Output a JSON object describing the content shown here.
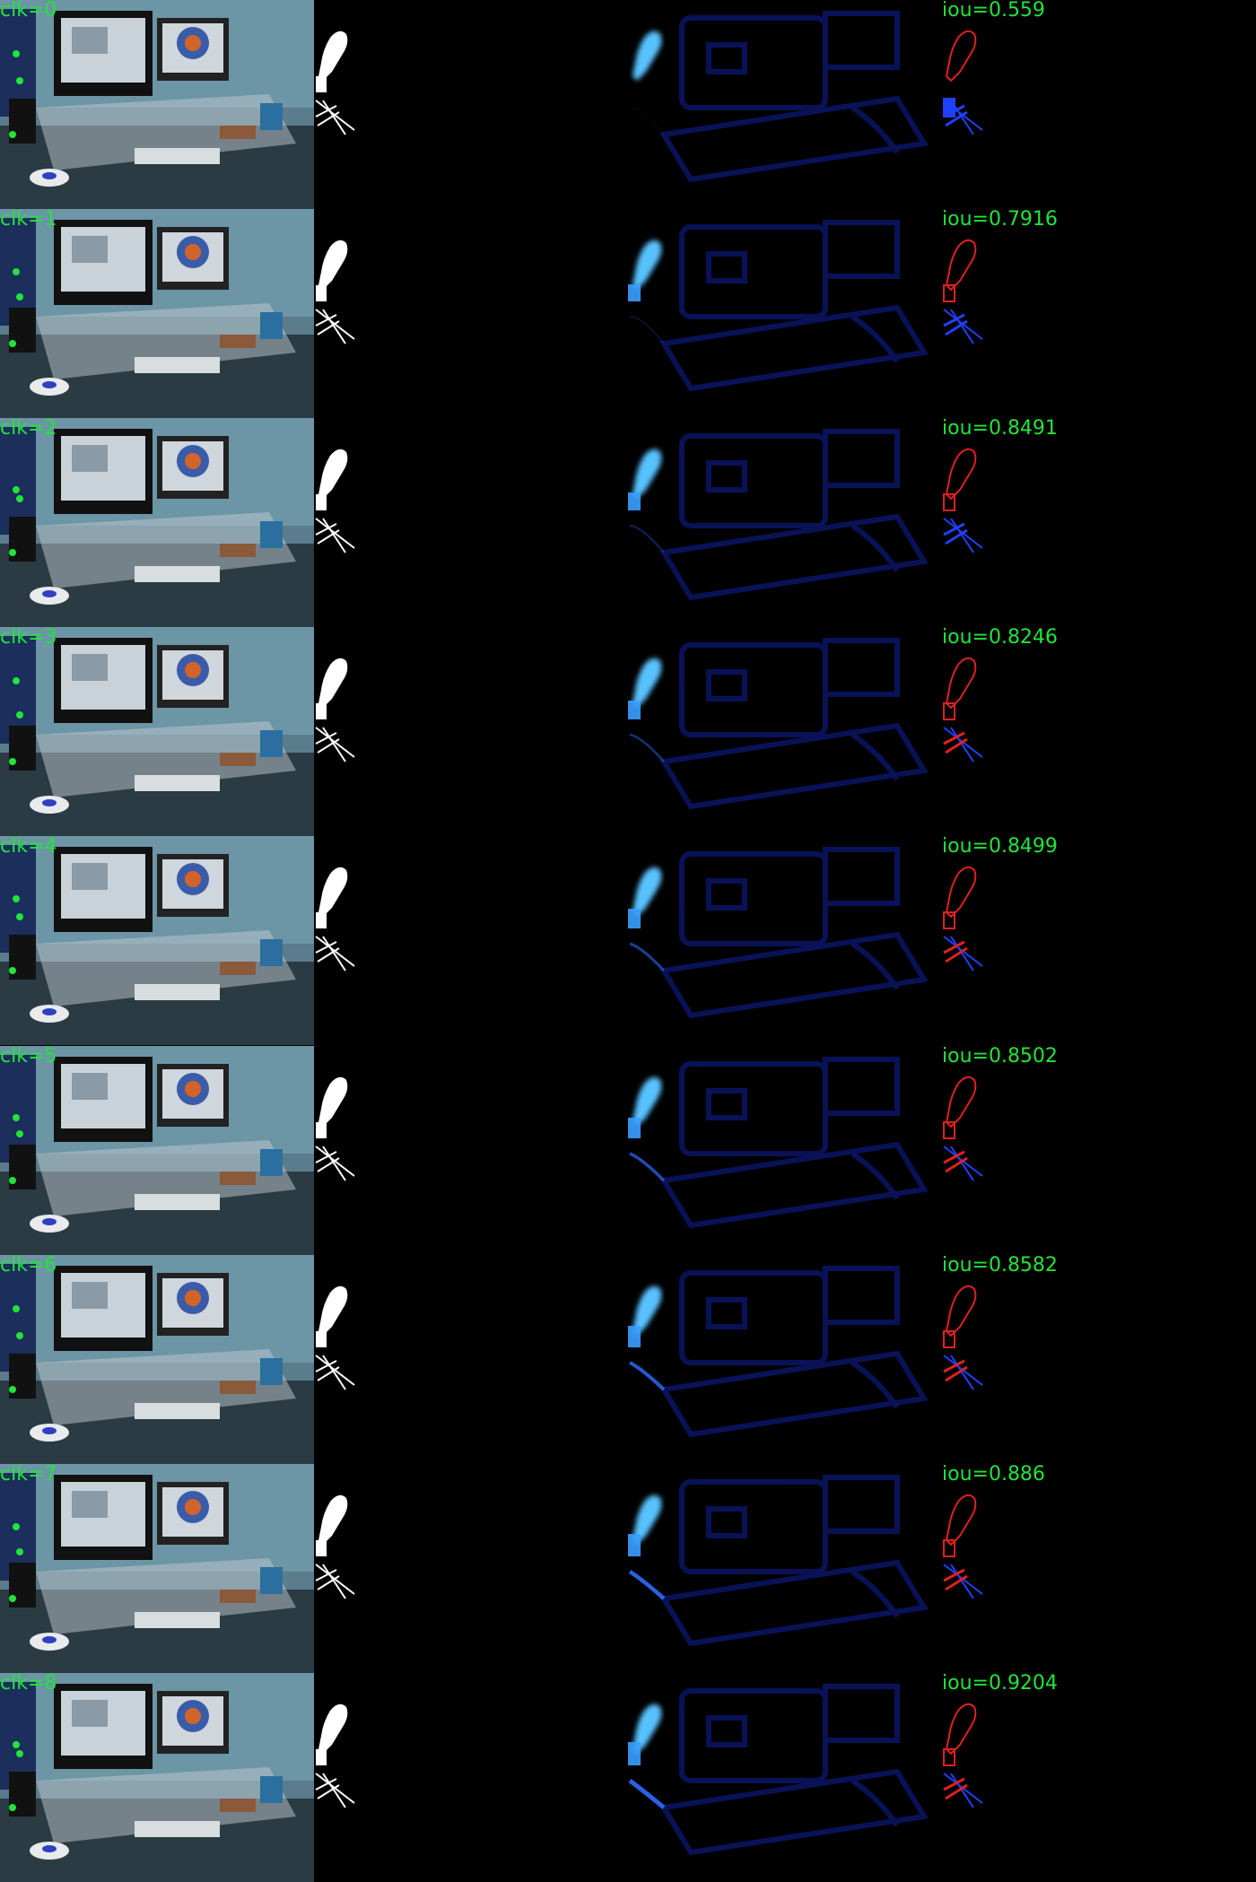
{
  "rows": [
    {
      "click_label": "clk=0",
      "iou_label": "iou=0.559"
    },
    {
      "click_label": "clk=1",
      "iou_label": "iou=0.7916"
    },
    {
      "click_label": "clk=2",
      "iou_label": "iou=0.8491"
    },
    {
      "click_label": "clk=3",
      "iou_label": "iou=0.8246"
    },
    {
      "click_label": "clk=4",
      "iou_label": "iou=0.8499"
    },
    {
      "click_label": "clk=5",
      "iou_label": "iou=0.8502"
    },
    {
      "click_label": "clk=6",
      "iou_label": "iou=0.8582"
    },
    {
      "click_label": "clk=7",
      "iou_label": "iou=0.886"
    },
    {
      "click_label": "clk=8",
      "iou_label": "iou=0.9204"
    }
  ],
  "colors": {
    "label_green": "#22e43a",
    "prediction_red": "#e02020",
    "ground_truth_blue": "#2040ff",
    "heatmap_blue": "#3aa0ff",
    "click_marker_green": "#22e43a"
  }
}
